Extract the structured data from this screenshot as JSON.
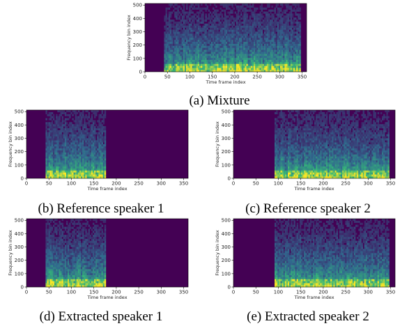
{
  "colors": {
    "background": "#440154",
    "mid": "#31688e",
    "high": "#35b779",
    "peak": "#fde725"
  },
  "x_ticks": [
    "0",
    "50",
    "100",
    "150",
    "200",
    "250",
    "300",
    "350"
  ],
  "y_ticks": [
    "0",
    "100",
    "200",
    "300",
    "400",
    "500"
  ],
  "xlabel": "Time frame index",
  "ylabel": "Frequency bin index",
  "chart_data": [
    {
      "type": "heatmap",
      "caption": "(a) Mixture",
      "xlim": [
        0,
        360
      ],
      "ylim": [
        0,
        512
      ],
      "active_ranges": [
        [
          42,
          178
        ],
        [
          92,
          348
        ]
      ]
    },
    {
      "type": "heatmap",
      "caption": "(b) Reference speaker 1",
      "xlim": [
        0,
        360
      ],
      "ylim": [
        0,
        512
      ],
      "active_ranges": [
        [
          42,
          178
        ]
      ]
    },
    {
      "type": "heatmap",
      "caption": "(c) Reference speaker 2",
      "xlim": [
        0,
        360
      ],
      "ylim": [
        0,
        512
      ],
      "active_ranges": [
        [
          92,
          348
        ]
      ]
    },
    {
      "type": "heatmap",
      "caption": "(d) Extracted speaker 1",
      "xlim": [
        0,
        360
      ],
      "ylim": [
        0,
        512
      ],
      "active_ranges": [
        [
          42,
          178
        ]
      ]
    },
    {
      "type": "heatmap",
      "caption": "(e) Extracted speaker 2",
      "xlim": [
        0,
        360
      ],
      "ylim": [
        0,
        512
      ],
      "active_ranges": [
        [
          92,
          348
        ]
      ]
    }
  ]
}
